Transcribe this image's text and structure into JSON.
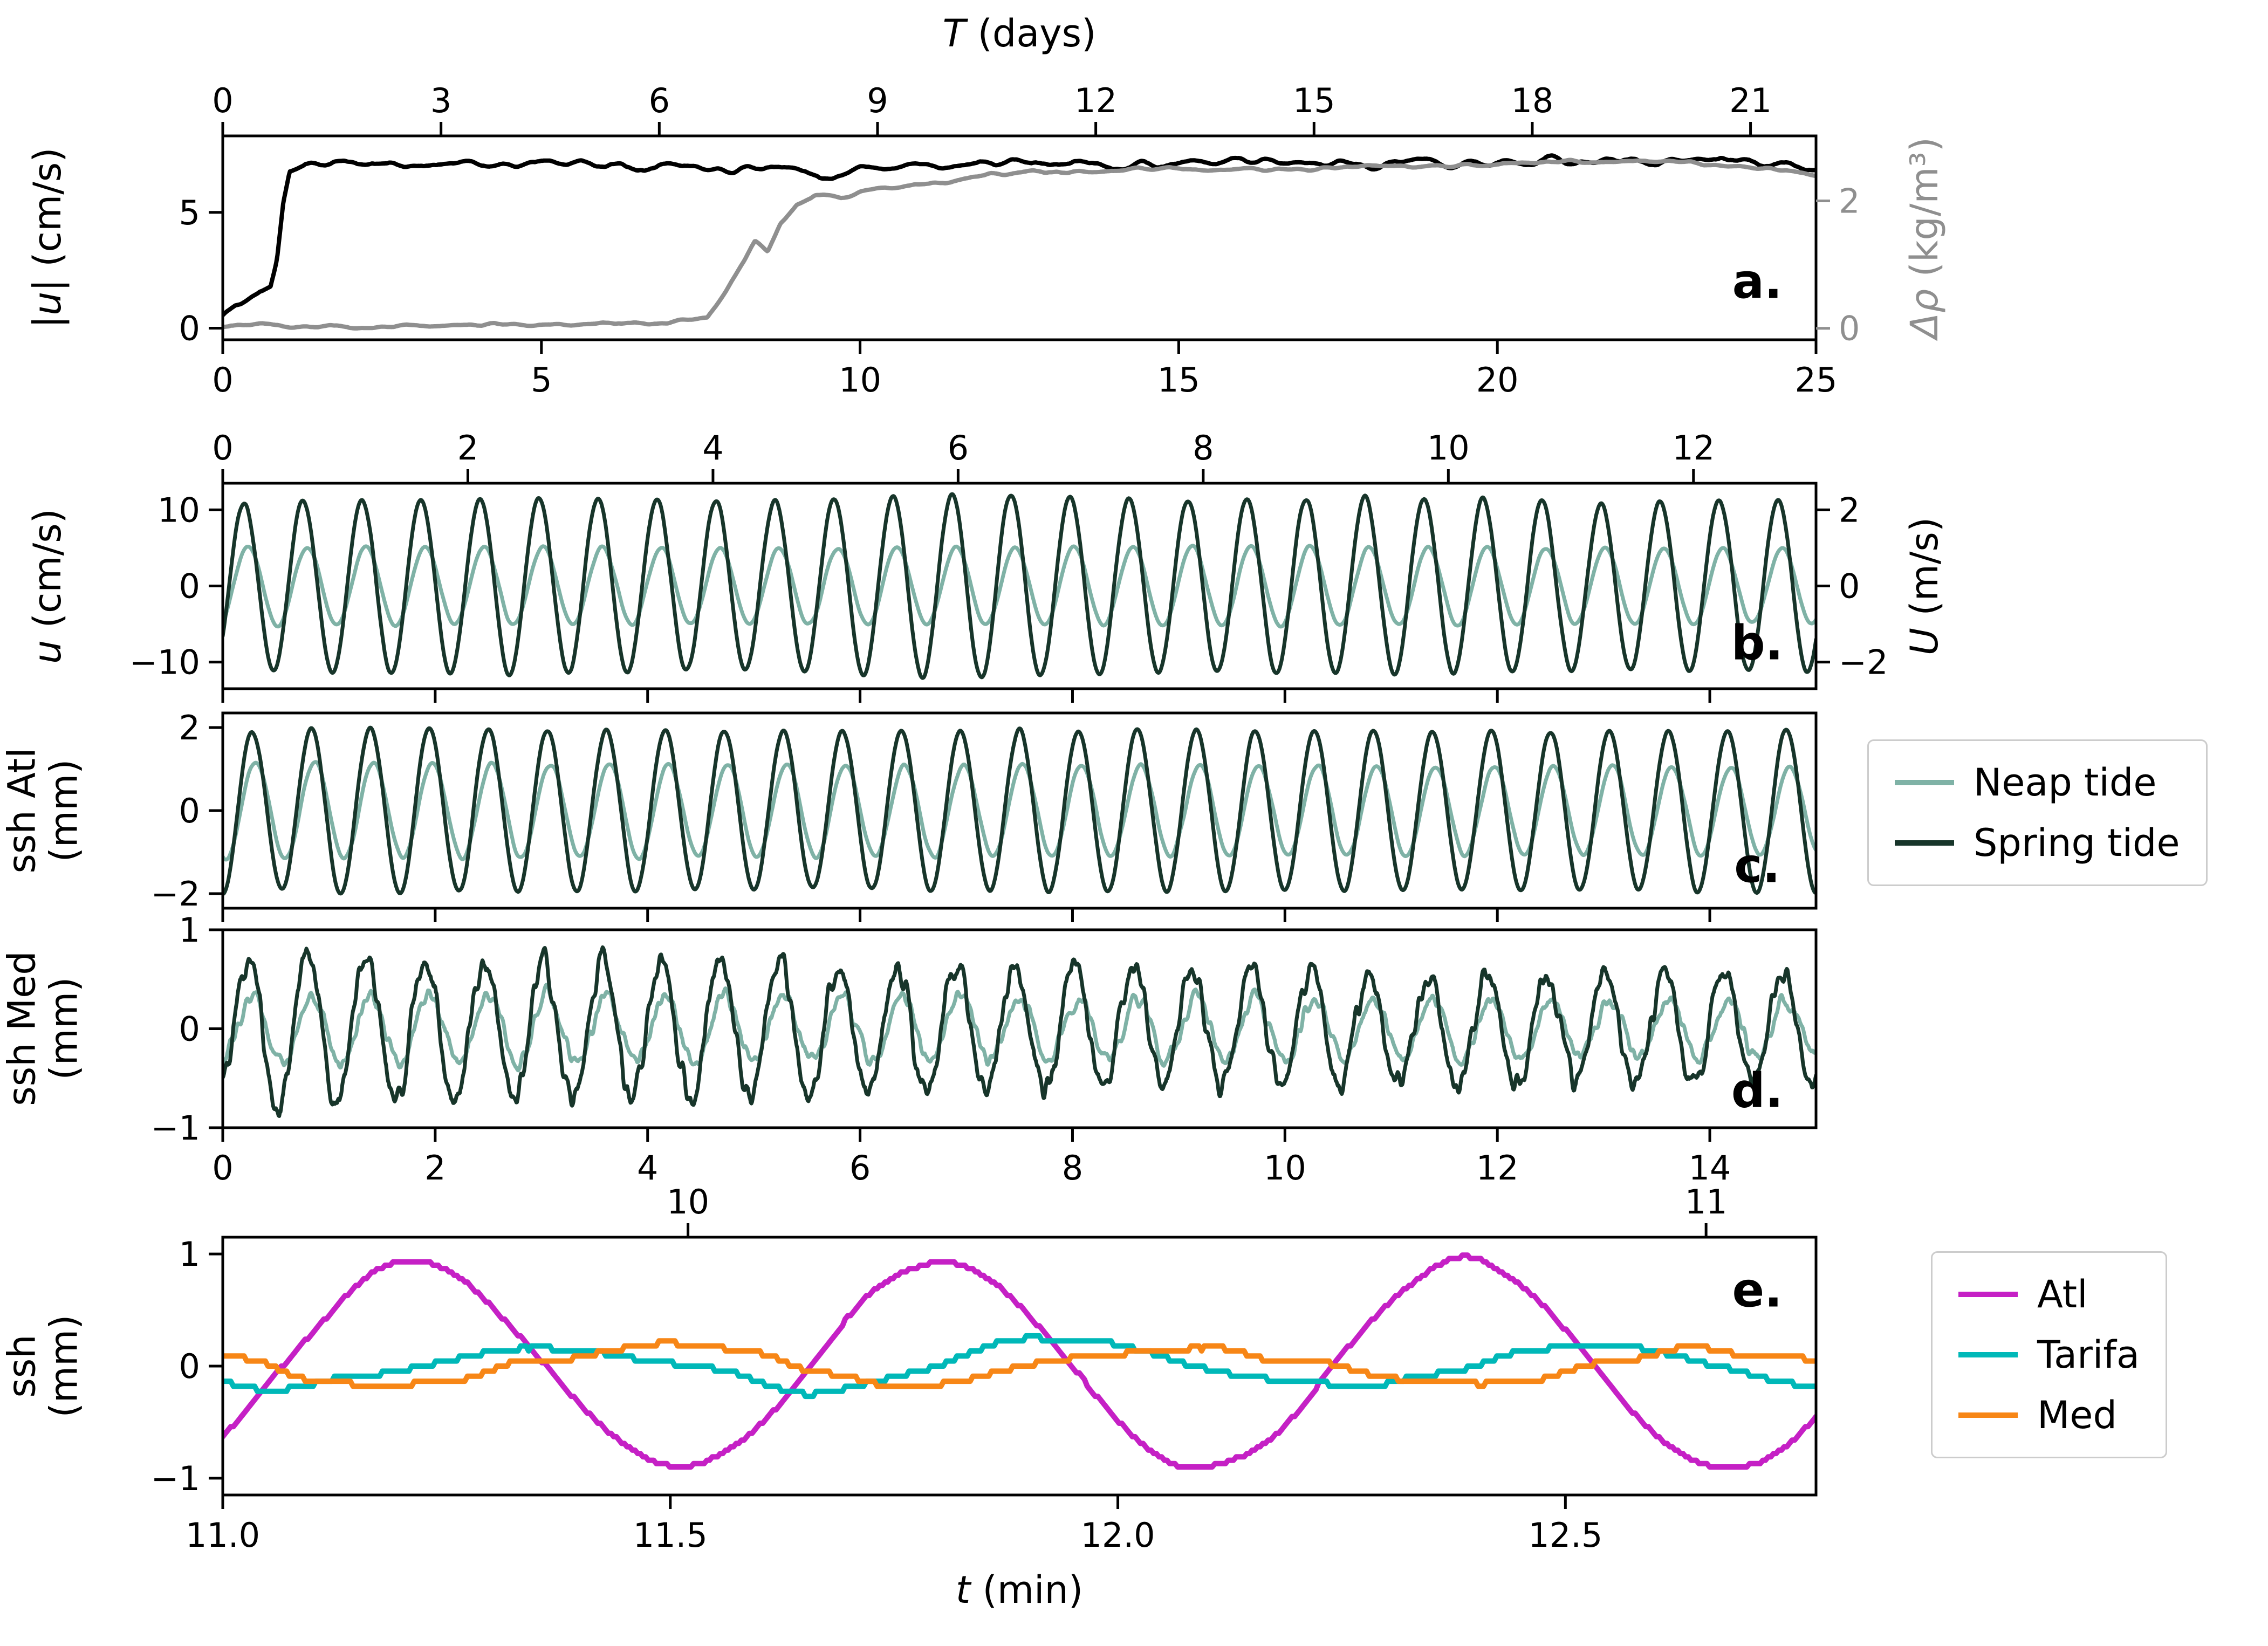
{
  "figure": {
    "background": "#ffffff"
  },
  "colors": {
    "speed": "#000000",
    "density": "#8f8f8f",
    "neap": "#7fb2a6",
    "spring": "#17352a",
    "atl": "#c520c5",
    "tarifa": "#00b8b8",
    "med": "#f78616",
    "spine": "#000000"
  },
  "legend_tides": {
    "items": [
      {
        "label": "Neap tide",
        "color": "#7fb2a6"
      },
      {
        "label": "Spring tide",
        "color": "#17352a"
      }
    ]
  },
  "legend_stations": {
    "items": [
      {
        "label": "Atl",
        "color": "#c520c5"
      },
      {
        "label": "Tarifa",
        "color": "#00b8b8"
      },
      {
        "label": "Med",
        "color": "#f78616"
      }
    ]
  },
  "chart_data": [
    {
      "id": "a",
      "letter": "a.",
      "type": "line",
      "axes": {
        "top": {
          "label_em": "T",
          "label_text": " (days)",
          "range": [
            0,
            21.9
          ],
          "ticks": [
            0,
            3,
            6,
            9,
            12,
            15,
            18,
            21
          ],
          "labels": [
            "0",
            "3",
            "6",
            "9",
            "12",
            "15",
            "18",
            "21"
          ],
          "labeled": true
        },
        "bottom": {
          "range": [
            0,
            25
          ],
          "ticks": [
            0,
            5,
            10,
            15,
            20,
            25
          ],
          "labels": [
            "0",
            "5",
            "10",
            "15",
            "20",
            "25"
          ],
          "labeled": true
        },
        "left": {
          "label_em": "|u|",
          "label_text": " (cm/s)",
          "range": [
            -0.5,
            8.3
          ],
          "ticks": [
            0,
            5
          ],
          "labels": [
            "0",
            "5"
          ],
          "labeled": true
        },
        "right": {
          "label_em": "Δρ",
          "label_text": " (kg/m³)",
          "range": [
            -0.18,
            3.02
          ],
          "ticks": [
            0,
            2
          ],
          "labels": [
            "0",
            "2"
          ],
          "labeled": true,
          "color": "#8f8f8f"
        }
      },
      "series": [
        {
          "name": "abs velocity",
          "color": "#000000",
          "axis": "left",
          "width": 8,
          "gen": {
            "kind": "env",
            "n": 1400,
            "seed": 11,
            "noise": 0.3,
            "nrad": 6,
            "npass": 2,
            "env": [
              [
                0,
                0.5
              ],
              [
                0.2,
                1.0
              ],
              [
                0.5,
                1.4
              ],
              [
                0.75,
                1.8
              ],
              [
                0.85,
                3.0
              ],
              [
                0.95,
                5.5
              ],
              [
                1.05,
                6.8
              ],
              [
                1.3,
                7.1
              ],
              [
                3,
                7.1
              ],
              [
                6,
                7.15
              ],
              [
                9,
                6.9
              ],
              [
                9.6,
                6.6
              ],
              [
                10,
                7.0
              ],
              [
                12,
                7.1
              ],
              [
                16,
                7.1
              ],
              [
                20,
                7.15
              ],
              [
                22.5,
                7.2
              ],
              [
                23.5,
                7.35
              ],
              [
                24.5,
                7.0
              ],
              [
                25,
                6.9
              ]
            ]
          }
        },
        {
          "name": "density difference",
          "color": "#8f8f8f",
          "axis": "right",
          "width": 8,
          "gen": {
            "kind": "env",
            "n": 1400,
            "seed": 23,
            "noise": 0.06,
            "nrad": 5,
            "npass": 2,
            "env": [
              [
                0,
                0.05
              ],
              [
                2,
                0.02
              ],
              [
                4,
                0.06
              ],
              [
                7,
                0.08
              ],
              [
                7.6,
                0.15
              ],
              [
                7.9,
                0.6
              ],
              [
                8.1,
                0.95
              ],
              [
                8.35,
                1.35
              ],
              [
                8.55,
                1.2
              ],
              [
                8.75,
                1.65
              ],
              [
                9.0,
                1.95
              ],
              [
                9.3,
                2.1
              ],
              [
                9.7,
                2.05
              ],
              [
                10.2,
                2.2
              ],
              [
                11,
                2.25
              ],
              [
                12,
                2.4
              ],
              [
                13,
                2.45
              ],
              [
                15,
                2.5
              ],
              [
                17,
                2.5
              ],
              [
                19,
                2.55
              ],
              [
                21,
                2.6
              ],
              [
                22.5,
                2.65
              ],
              [
                23.5,
                2.55
              ],
              [
                24.5,
                2.5
              ],
              [
                25,
                2.45
              ]
            ]
          }
        }
      ]
    },
    {
      "id": "b",
      "letter": "b.",
      "type": "line",
      "axes": {
        "top": {
          "range": [
            0,
            13.0
          ],
          "ticks": [
            0,
            2,
            4,
            6,
            8,
            10,
            12
          ],
          "labels": [
            "0",
            "2",
            "4",
            "6",
            "8",
            "10",
            "12"
          ],
          "labeled": true
        },
        "bottom": {
          "range": [
            0,
            15
          ],
          "ticks": [
            0,
            2,
            4,
            6,
            8,
            10,
            12,
            14
          ],
          "labels": [
            "0",
            "2",
            "4",
            "6",
            "8",
            "10",
            "12",
            "14"
          ],
          "labeled": false
        },
        "left": {
          "label_em": "u",
          "label_text": " (cm/s)",
          "range": [
            -13.5,
            13.5
          ],
          "ticks": [
            -10,
            0,
            10
          ],
          "labels": [
            "−10",
            "0",
            "10"
          ],
          "labeled": true
        },
        "right": {
          "label_em": "U",
          "label_text": " (m/s)",
          "range": [
            -2.7,
            2.7
          ],
          "ticks": [
            -2,
            0,
            2
          ],
          "labels": [
            "−2",
            "0",
            "2"
          ],
          "labeled": true
        }
      },
      "series": [
        {
          "name": "Neap tide",
          "color": "#7fb2a6",
          "axis": "left",
          "width": 7,
          "gen": {
            "kind": "tide",
            "n": 2400,
            "seed": 37,
            "period": 0.5555,
            "t0": 0.1,
            "amp": [
              [
                0,
                5.2
              ],
              [
                5,
                5.0
              ],
              [
                10,
                5.2
              ],
              [
                15,
                4.9
              ]
            ],
            "noise": 0.25,
            "nrad": 4,
            "npass": 2
          }
        },
        {
          "name": "Spring tide",
          "color": "#17352a",
          "axis": "left",
          "width": 7,
          "gen": {
            "kind": "tide",
            "n": 2400,
            "seed": 31,
            "period": 0.5555,
            "t0": 0.06,
            "amp": [
              [
                0,
                10.5
              ],
              [
                0.5,
                11.2
              ],
              [
                3,
                11.6
              ],
              [
                5,
                11.0
              ],
              [
                7,
                12.2
              ],
              [
                9,
                11.2
              ],
              [
                11,
                11.6
              ],
              [
                13,
                11.0
              ],
              [
                15,
                11.3
              ]
            ],
            "noise": 0.35,
            "nrad": 4,
            "npass": 2
          }
        }
      ]
    },
    {
      "id": "c",
      "letter": "c.",
      "type": "line",
      "axes": {
        "bottom": {
          "range": [
            0,
            15
          ],
          "ticks": [
            0,
            2,
            4,
            6,
            8,
            10,
            12,
            14
          ],
          "labels": [
            "0",
            "2",
            "4",
            "6",
            "8",
            "10",
            "12",
            "14"
          ],
          "labeled": false
        },
        "left": {
          "label_line1": "ssh Atl",
          "label_line2": "(mm)",
          "range": [
            -2.35,
            2.35
          ],
          "ticks": [
            -2,
            0,
            2
          ],
          "labels": [
            "−2",
            "0",
            "2"
          ],
          "labeled": true
        }
      },
      "series": [
        {
          "name": "Neap tide",
          "color": "#7fb2a6",
          "axis": "left",
          "width": 7,
          "gen": {
            "kind": "tide",
            "n": 2400,
            "seed": 43,
            "period": 0.5555,
            "t0": 0.17,
            "amp": [
              [
                0,
                1.15
              ],
              [
                15,
                1.05
              ]
            ],
            "noise": 0.06,
            "nrad": 4,
            "npass": 2
          }
        },
        {
          "name": "Spring tide",
          "color": "#17352a",
          "axis": "left",
          "width": 7,
          "gen": {
            "kind": "tide",
            "n": 2400,
            "seed": 41,
            "period": 0.5555,
            "t0": 0.139,
            "amp": [
              [
                0,
                2.05
              ],
              [
                0.4,
                1.85
              ],
              [
                1,
                2.0
              ],
              [
                3,
                1.95
              ],
              [
                6,
                1.9
              ],
              [
                9,
                1.95
              ],
              [
                12,
                1.9
              ],
              [
                15,
                1.95
              ]
            ],
            "noise": 0.07,
            "nrad": 4,
            "npass": 2
          }
        }
      ]
    },
    {
      "id": "d",
      "letter": "d.",
      "type": "line",
      "axes": {
        "bottom": {
          "range": [
            0,
            15
          ],
          "ticks": [
            0,
            2,
            4,
            6,
            8,
            10,
            12,
            14
          ],
          "labels": [
            "0",
            "2",
            "4",
            "6",
            "8",
            "10",
            "12",
            "14"
          ],
          "labeled": true
        },
        "left": {
          "label_line1": "ssh Med",
          "label_line2": "(mm)",
          "range": [
            -1,
            1
          ],
          "ticks": [
            -1,
            0,
            1
          ],
          "labels": [
            "−1",
            "0",
            "1"
          ],
          "labeled": true
        }
      },
      "series": [
        {
          "name": "Neap tide",
          "color": "#7fb2a6",
          "axis": "left",
          "width": 7,
          "gen": {
            "kind": "tide",
            "n": 2400,
            "seed": 53,
            "period": 0.5555,
            "t0": 0.14,
            "amp": [
              [
                0,
                0.3
              ],
              [
                1,
                0.35
              ],
              [
                5,
                0.33
              ],
              [
                10,
                0.3
              ],
              [
                15,
                0.28
              ]
            ],
            "noise": 0.11,
            "nrad": 2,
            "npass": 2
          }
        },
        {
          "name": "Spring tide",
          "color": "#17352a",
          "axis": "left",
          "width": 7,
          "gen": {
            "kind": "tide",
            "n": 2400,
            "seed": 47,
            "period": 0.5555,
            "t0": 0.1,
            "amp": [
              [
                0,
                0.5
              ],
              [
                0.35,
                0.85
              ],
              [
                0.7,
                0.78
              ],
              [
                1.5,
                0.74
              ],
              [
                3,
                0.7
              ],
              [
                5,
                0.67
              ],
              [
                7,
                0.63
              ],
              [
                9,
                0.6
              ],
              [
                11,
                0.58
              ],
              [
                13,
                0.56
              ],
              [
                15,
                0.55
              ]
            ],
            "noise": 0.17,
            "nrad": 2,
            "npass": 2
          }
        }
      ]
    },
    {
      "id": "e",
      "letter": "e.",
      "type": "line",
      "axes": {
        "top": {
          "range": [
            9.543,
            11.108
          ],
          "ticks": [
            10,
            11
          ],
          "labels": [
            "10",
            "11"
          ],
          "labeled": true
        },
        "bottom": {
          "label_em": "t",
          "label_text": " (min)",
          "range": [
            11.0,
            12.78
          ],
          "ticks": [
            11.0,
            11.5,
            12.0,
            12.5
          ],
          "labels": [
            "11.0",
            "11.5",
            "12.0",
            "12.5"
          ],
          "labeled": true
        },
        "left": {
          "label_line1": "ssh",
          "label_line2": "(mm)",
          "range": [
            -1.15,
            1.15
          ],
          "ticks": [
            -1,
            0,
            1
          ],
          "labels": [
            "−1",
            "0",
            "1"
          ],
          "labeled": true
        }
      },
      "series": [
        {
          "name": "Atl",
          "color": "#c520c5",
          "axis": "left",
          "width": 10,
          "gen": {
            "kind": "tide",
            "n": 600,
            "seed": 61,
            "period": 0.585,
            "t0": 11.07,
            "amp": 0.93,
            "noise": 0.05,
            "nrad": 8,
            "npass": 2,
            "quant": 0.03
          }
        },
        {
          "name": "Tarifa",
          "color": "#00b8b8",
          "axis": "left",
          "width": 10,
          "gen": {
            "kind": "tide",
            "n": 600,
            "seed": 67,
            "period": 0.585,
            "t0": 11.22,
            "amp": 0.19,
            "noise": 0.09,
            "nrad": 10,
            "npass": 2,
            "quant": 0.045
          }
        },
        {
          "name": "Med",
          "color": "#f78616",
          "axis": "left",
          "width": 10,
          "gen": {
            "kind": "tide",
            "n": 600,
            "seed": 71,
            "period": 0.585,
            "t0": 11.346,
            "amp": 0.17,
            "noise": 0.07,
            "nrad": 9,
            "npass": 2,
            "quant": 0.045
          }
        }
      ]
    }
  ]
}
